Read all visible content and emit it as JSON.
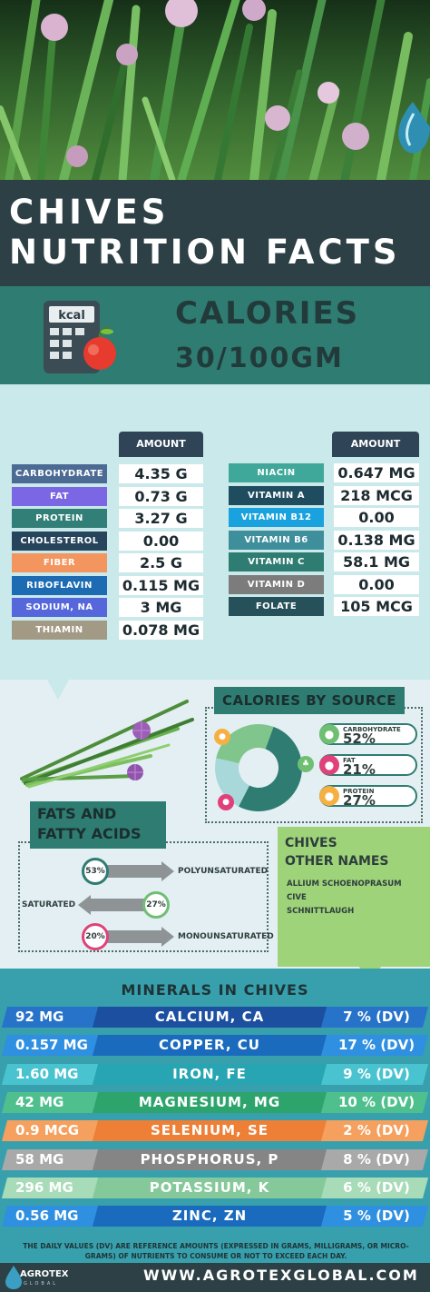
{
  "title": {
    "line1": "CHIVES",
    "line2": "NUTRITION FACTS"
  },
  "calories": {
    "label": "CALORIES",
    "value": "30/100GM",
    "icon_label": "kcal",
    "icon": "calculator-apple-icon"
  },
  "nutrients": {
    "amount_header": "AMOUNT",
    "left": [
      {
        "name": "CARBOHYDRATE",
        "amount": "4.35 G",
        "color": "#4c6b94"
      },
      {
        "name": "FAT",
        "amount": "0.73 G",
        "color": "#7b67e4"
      },
      {
        "name": "PROTEIN",
        "amount": "3.27 G",
        "color": "#317f77"
      },
      {
        "name": "CHOLESTEROL",
        "amount": "0.00",
        "color": "#26445c"
      },
      {
        "name": "FIBER",
        "amount": "2.5 G",
        "color": "#f3955f"
      },
      {
        "name": "RIBOFLAVIN",
        "amount": "0.115 MG",
        "color": "#1d6cb3"
      },
      {
        "name": "SODIUM, NA",
        "amount": "3 MG",
        "color": "#5567db"
      },
      {
        "name": "THIAMIN",
        "amount": "0.078 MG",
        "color": "#a39a86"
      }
    ],
    "right": [
      {
        "name": "NIACIN",
        "amount": "0.647 MG",
        "color": "#3fa89a"
      },
      {
        "name": "VITAMIN A",
        "amount": "218 MCG",
        "color": "#1f4d5f"
      },
      {
        "name": "VITAMIN B12",
        "amount": "0.00",
        "color": "#1aa2df"
      },
      {
        "name": "VITAMIN B6",
        "amount": "0.138 MG",
        "color": "#3e8f9b"
      },
      {
        "name": "VITAMIN C",
        "amount": "58.1 MG",
        "color": "#2e7c72"
      },
      {
        "name": "VITAMIN D",
        "amount": "0.00",
        "color": "#7c7c7c"
      },
      {
        "name": "FOLATE",
        "amount": "105 MCG",
        "color": "#26505a"
      }
    ]
  },
  "calories_by_source": {
    "title": "CALORIES BY SOURCE",
    "items": [
      {
        "name": "CARBOHYDRATE",
        "pct": "52%",
        "value": 52,
        "color": "#2e7c72",
        "icon_color": "#6fbf73"
      },
      {
        "name": "FAT",
        "pct": "21%",
        "value": 21,
        "color": "#a9d8db",
        "icon_color": "#e0417a"
      },
      {
        "name": "PROTEIN",
        "pct": "27%",
        "value": 27,
        "color": "#7fc58c",
        "icon_color": "#f5b041"
      }
    ]
  },
  "fats": {
    "title_line1": "FATS AND",
    "title_line2": "FATTY ACIDS",
    "items": [
      {
        "pct": "53%",
        "label": "POLYUNSATURATED",
        "value": 53,
        "color": "#2e7c72"
      },
      {
        "pct": "27%",
        "label": "SATURATED",
        "value": 27,
        "color": "#6fbf73"
      },
      {
        "pct": "20%",
        "label": "MONOUNSATURATED",
        "value": 20,
        "color": "#e0417a"
      }
    ]
  },
  "other_names": {
    "title_line1": "CHIVES",
    "title_line2": "OTHER NAMES",
    "names": [
      "ALLIUM SCHOENOPRASUM",
      "CIVE",
      "SCHNITTLAUGH"
    ]
  },
  "minerals": {
    "title": "MINERALS IN CHIVES",
    "items": [
      {
        "amount": "92 MG",
        "name": "CALCIUM, CA",
        "dv": "7 % (DV)",
        "light": "#2673c9",
        "dark": "#1c4fa0"
      },
      {
        "amount": "0.157 MG",
        "name": "COPPER, CU",
        "dv": "17 % (DV)",
        "light": "#2f8fe0",
        "dark": "#1a6bbd"
      },
      {
        "amount": "1.60 MG",
        "name": "IRON, FE",
        "dv": "9 % (DV)",
        "light": "#49c3cf",
        "dark": "#27a5b2"
      },
      {
        "amount": "42 MG",
        "name": "MAGNESIUM, MG",
        "dv": "10 % (DV)",
        "light": "#4fc08d",
        "dark": "#2ea46d"
      },
      {
        "amount": "0.9 MCG",
        "name": "SELENIUM, SE",
        "dv": "2 % (DV)",
        "light": "#f5a05e",
        "dark": "#ee7f37"
      },
      {
        "amount": "58 MG",
        "name": "PHOSPHORUS, P",
        "dv": "8 % (DV)",
        "light": "#a9a9a9",
        "dark": "#858585"
      },
      {
        "amount": "296 MG",
        "name": "POTASSIUM, K",
        "dv": "6 % (DV)",
        "light": "#a8dcb9",
        "dark": "#85c99b"
      },
      {
        "amount": "0.56 MG",
        "name": "ZINC, ZN",
        "dv": "5 % (DV)",
        "light": "#2f8fe0",
        "dark": "#1a6bbd"
      }
    ]
  },
  "footer": {
    "note": "THE DAILY VALUES (DV) ARE REFERENCE AMOUNTS (EXPRESSED IN GRAMS, MILLIGRAMS, OR MICRO-GRAMS) OF NUTRIENTS TO CONSUME OR NOT TO EXCEED EACH DAY.",
    "website": "WWW.AGROTEXGLOBAL.COM",
    "logo_line1": "AGROTEX",
    "logo_line2": "GLOBAL"
  }
}
